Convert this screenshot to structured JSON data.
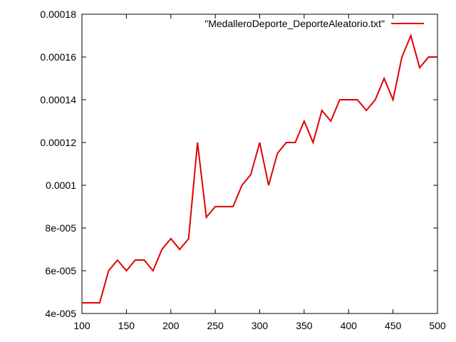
{
  "chart_data": {
    "type": "line",
    "title": "",
    "xlabel": "",
    "ylabel": "",
    "xlim": [
      100,
      500
    ],
    "ylim": [
      4e-05,
      0.00018
    ],
    "grid": false,
    "legend_position": "top-right",
    "x_ticks": [
      100,
      150,
      200,
      250,
      300,
      350,
      400,
      450,
      500
    ],
    "x_tick_labels": [
      "100",
      "150",
      "200",
      "250",
      "300",
      "350",
      "400",
      "450",
      "500"
    ],
    "y_ticks": [
      4e-05,
      6e-05,
      8e-05,
      0.0001,
      0.00012,
      0.00014,
      0.00016,
      0.00018
    ],
    "y_tick_labels": [
      "4e-005",
      "6e-005",
      "8e-005",
      "0.0001",
      "0.00012",
      "0.00014",
      "0.00016",
      "0.00018"
    ],
    "series": [
      {
        "name": "\"MedalleroDeporte_DeporteAleatorio.txt\"",
        "color": "#e00000",
        "x": [
          100,
          110,
          120,
          130,
          140,
          150,
          160,
          170,
          180,
          190,
          200,
          210,
          220,
          230,
          240,
          250,
          260,
          270,
          280,
          290,
          300,
          310,
          320,
          330,
          340,
          350,
          360,
          370,
          380,
          390,
          400,
          410,
          420,
          430,
          440,
          450,
          460,
          470,
          480,
          490,
          500
        ],
        "y": [
          4.5e-05,
          4.5e-05,
          4.5e-05,
          6e-05,
          6.5e-05,
          6e-05,
          6.5e-05,
          6.5e-05,
          6e-05,
          7e-05,
          7.5e-05,
          7e-05,
          7.5e-05,
          0.00012,
          8.5e-05,
          9e-05,
          9e-05,
          9e-05,
          0.0001,
          0.000105,
          0.00012,
          0.0001,
          0.000115,
          0.00012,
          0.00012,
          0.00013,
          0.00012,
          0.000135,
          0.00013,
          0.00014,
          0.00014,
          0.00014,
          0.000135,
          0.00014,
          0.00015,
          0.00014,
          0.00016,
          0.00017,
          0.000155,
          0.00016,
          0.00016
        ]
      }
    ]
  }
}
